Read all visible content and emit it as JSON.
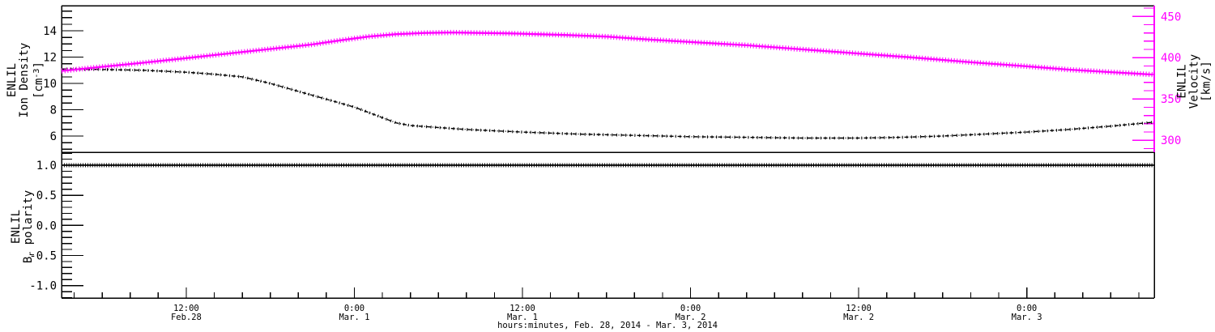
{
  "figure": {
    "background": "#ffffff",
    "accent_magenta": "#ff00ff",
    "line_black": "#000000"
  },
  "chart_data": {
    "type": "line",
    "title": "",
    "x_axis": {
      "label": "hours:minutes, Feb. 28, 2014 - Mar.  3, 2014",
      "units": "hours since Feb. 28, 2014 00:00",
      "range": [
        3.1,
        81.1
      ],
      "minor_step": 2,
      "major_ticks": [
        {
          "t": 12,
          "time": "12:00",
          "date": "Feb.28"
        },
        {
          "t": 24,
          "time": "0:00",
          "date": "Mar. 1"
        },
        {
          "t": 36,
          "time": "12:00",
          "date": "Mar. 1"
        },
        {
          "t": 48,
          "time": "0:00",
          "date": "Mar. 2"
        },
        {
          "t": 60,
          "time": "12:00",
          "date": "Mar. 2"
        },
        {
          "t": 72,
          "time": "0:00",
          "date": "Mar. 3"
        }
      ]
    },
    "panels": [
      {
        "name": "density-velocity",
        "left_axis": {
          "title_parts": {
            "l1": "ENLIL",
            "l2": "Ion Density",
            "u_pre": "[cm",
            "u_sup": "-3",
            "u_post": "]"
          },
          "range": [
            4.77,
            15.91
          ],
          "minor_step": 0.5,
          "color": "#000000",
          "majors": [
            {
              "v": 6,
              "label": "6"
            },
            {
              "v": 8,
              "label": "8"
            },
            {
              "v": 10,
              "label": "10"
            },
            {
              "v": 12,
              "label": "12"
            },
            {
              "v": 14,
              "label": "14"
            }
          ]
        },
        "right_axis": {
          "title_parts": {
            "l1": "ENLIL",
            "l2": "Velocity",
            "l3": "[km/s]"
          },
          "range": [
            285.5,
            463.0
          ],
          "minor_step": 10,
          "color": "#ff00ff",
          "majors": [
            {
              "v": 300,
              "label": "300"
            },
            {
              "v": 350,
              "label": "350"
            },
            {
              "v": 400,
              "label": "400"
            },
            {
              "v": 450,
              "label": "450"
            }
          ]
        },
        "series": [
          {
            "name": "ion_density",
            "axis": "left",
            "color": "#000000",
            "style": "dash-dot",
            "points": [
              [
                3.1,
                11.1
              ],
              [
                6,
                11.06
              ],
              [
                9,
                11.0
              ],
              [
                12,
                10.85
              ],
              [
                14,
                10.7
              ],
              [
                16,
                10.5
              ],
              [
                18,
                10.0
              ],
              [
                20,
                9.4
              ],
              [
                22,
                8.8
              ],
              [
                24,
                8.2
              ],
              [
                25.5,
                7.6
              ],
              [
                27,
                7.0
              ],
              [
                28,
                6.8
              ],
              [
                30,
                6.65
              ],
              [
                32,
                6.5
              ],
              [
                34,
                6.4
              ],
              [
                36,
                6.3
              ],
              [
                40,
                6.15
              ],
              [
                44,
                6.05
              ],
              [
                48,
                5.95
              ],
              [
                52,
                5.9
              ],
              [
                56,
                5.85
              ],
              [
                60,
                5.85
              ],
              [
                63,
                5.9
              ],
              [
                66,
                6.0
              ],
              [
                69,
                6.15
              ],
              [
                72,
                6.3
              ],
              [
                75,
                6.5
              ],
              [
                78,
                6.75
              ],
              [
                81,
                7.05
              ]
            ]
          },
          {
            "name": "velocity",
            "axis": "right",
            "color": "#ff00ff",
            "style": "plus-thick",
            "points": [
              [
                3.1,
                384
              ],
              [
                6,
                389
              ],
              [
                9,
                394
              ],
              [
                12,
                399.5
              ],
              [
                15,
                405
              ],
              [
                18,
                410.5
              ],
              [
                21,
                416
              ],
              [
                23,
                421
              ],
              [
                25,
                425.5
              ],
              [
                27,
                428.5
              ],
              [
                29,
                430
              ],
              [
                31,
                430.5
              ],
              [
                33,
                430
              ],
              [
                35,
                429.5
              ],
              [
                37,
                428.5
              ],
              [
                39,
                427.5
              ],
              [
                42,
                425.5
              ],
              [
                45,
                422
              ],
              [
                48,
                419
              ],
              [
                52,
                415
              ],
              [
                56,
                410
              ],
              [
                60,
                405
              ],
              [
                64,
                400
              ],
              [
                68,
                394.5
              ],
              [
                72,
                389.5
              ],
              [
                75,
                385.5
              ],
              [
                78,
                382.5
              ],
              [
                81,
                379.5
              ]
            ]
          }
        ]
      },
      {
        "name": "br-polarity",
        "left_axis": {
          "title_parts": {
            "l1": "ENLIL",
            "b_pre": "B",
            "b_sub": "r",
            "b_post": " polarity"
          },
          "range": [
            -1.206,
            1.215
          ],
          "minor_step": 0.1,
          "color": "#000000",
          "majors": [
            {
              "v": -1,
              "label": "-1.0"
            },
            {
              "v": -0.5,
              "label": "-0.5"
            },
            {
              "v": 0,
              "label": "0.0"
            },
            {
              "v": 0.5,
              "label": "0.5"
            },
            {
              "v": 1,
              "label": "1.0"
            }
          ]
        },
        "series": [
          {
            "name": "br_polarity",
            "axis": "left",
            "color": "#000000",
            "style": "plus-mid",
            "points": [
              [
                3.1,
                1.0
              ],
              [
                81.1,
                1.0
              ]
            ]
          }
        ]
      }
    ]
  }
}
